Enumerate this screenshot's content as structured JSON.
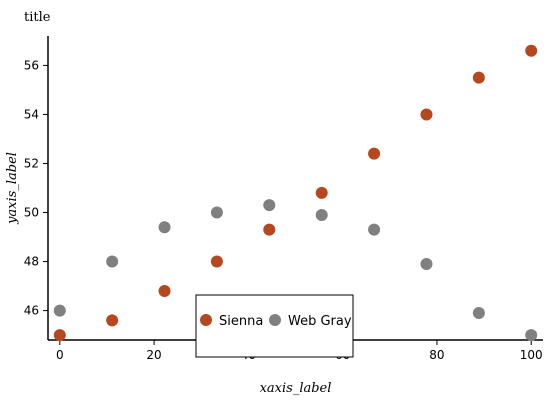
{
  "chart_data": {
    "type": "scatter",
    "title": "title",
    "xlabel": "xaxis_label",
    "ylabel": "yaxis_label",
    "xlim": [
      -2.5,
      102.5
    ],
    "ylim": [
      44.8,
      57.2
    ],
    "x_ticks": [
      0,
      20,
      40,
      60,
      80,
      100
    ],
    "y_ticks": [
      46,
      48,
      50,
      52,
      54,
      56
    ],
    "grid": false,
    "legend_position": "bottom",
    "series": [
      {
        "name": "Sienna",
        "color": "#B5481F",
        "x": [
          0,
          11.11,
          22.22,
          33.33,
          44.44,
          55.56,
          66.67,
          77.78,
          88.89,
          100
        ],
        "y": [
          45.0,
          45.6,
          46.8,
          48.0,
          49.3,
          50.8,
          52.4,
          54.0,
          55.5,
          56.6
        ]
      },
      {
        "name": "Web Gray",
        "color": "#808080",
        "x": [
          0,
          11.11,
          22.22,
          33.33,
          44.44,
          55.56,
          66.67,
          77.78,
          88.89,
          100
        ],
        "y": [
          46.0,
          48.0,
          49.4,
          50.0,
          50.3,
          49.9,
          49.3,
          47.9,
          45.9,
          45.0
        ]
      }
    ]
  }
}
